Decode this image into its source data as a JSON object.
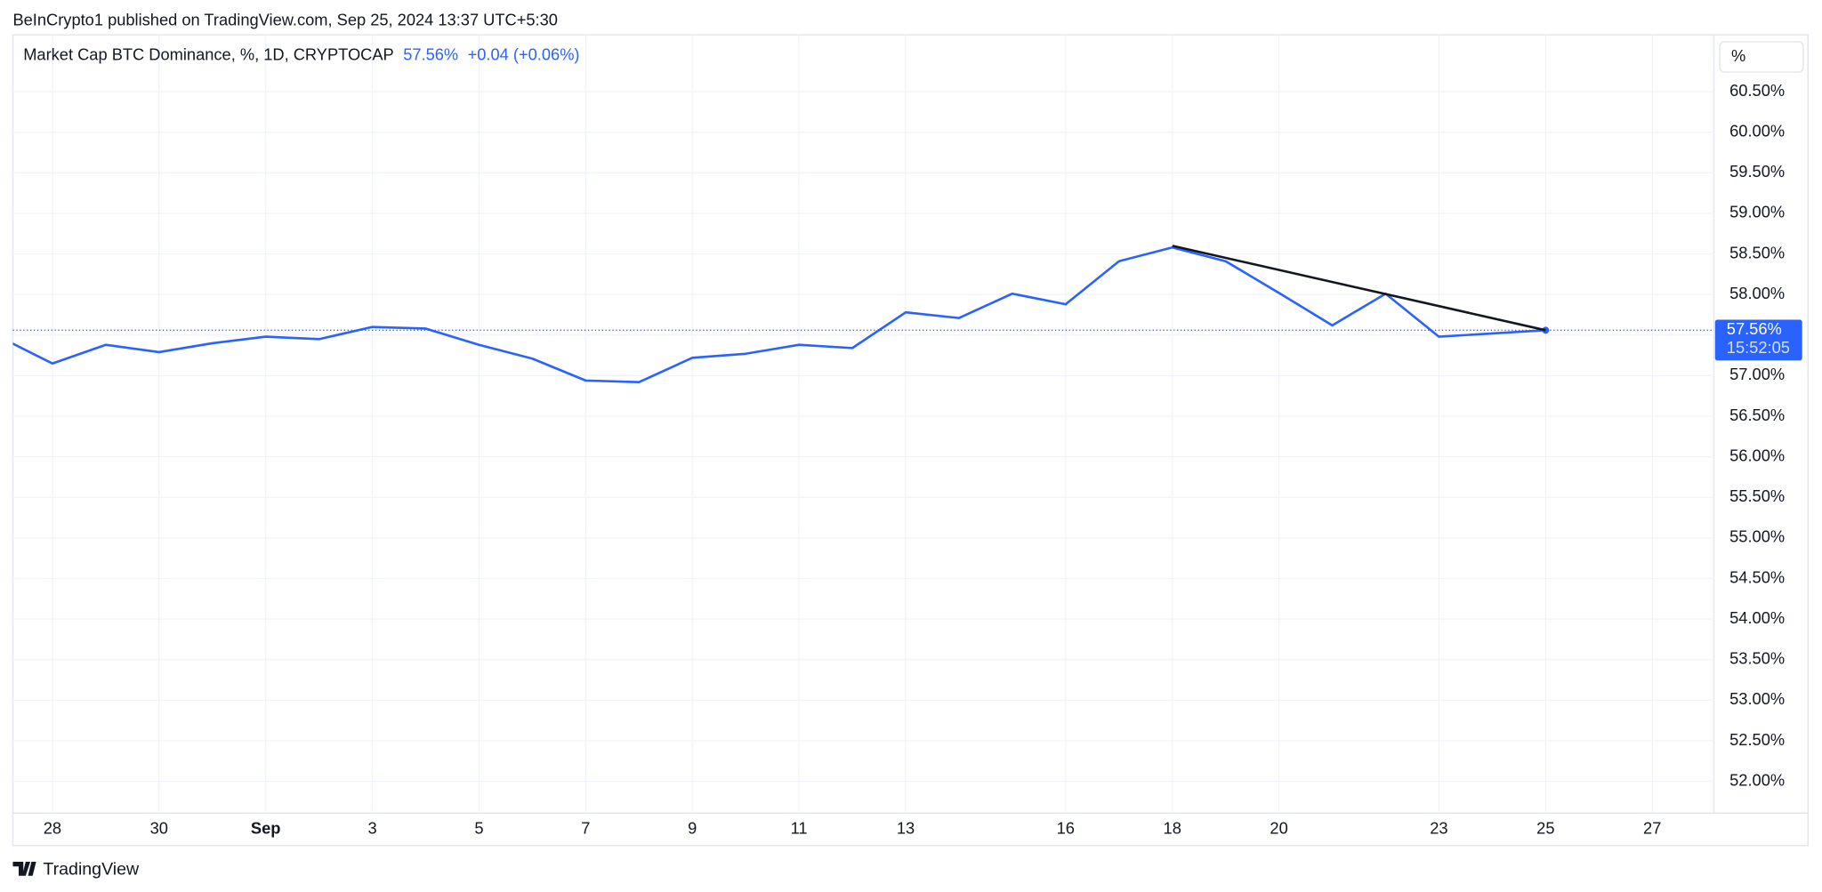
{
  "header": {
    "published": "BeInCrypto1 published on TradingView.com, Sep 25, 2024 13:37 UTC+5:30",
    "footer": "TradingView"
  },
  "chart_data": {
    "type": "line",
    "title": "Market Cap BTC Dominance, %, 1D, CRYPTOCAP",
    "last_price_label": "57.56%",
    "change_label": "+0.04 (+0.06%)",
    "countdown": "15:52:05",
    "scale_button": "%",
    "categories": [
      null,
      "28",
      null,
      "30",
      null,
      "Sep",
      null,
      "3",
      null,
      "5",
      null,
      "7",
      null,
      "9",
      null,
      "11",
      null,
      "13",
      null,
      null,
      "16",
      null,
      "18",
      null,
      "20",
      null,
      null,
      "23",
      null,
      "25",
      null,
      "27"
    ],
    "series": [
      {
        "name": "Market Cap BTC Dominance",
        "color": "#2962ff",
        "values": [
          57.48,
          57.15,
          57.38,
          57.29,
          57.4,
          57.48,
          57.45,
          57.6,
          57.58,
          57.38,
          57.21,
          56.94,
          56.92,
          57.22,
          57.27,
          57.38,
          57.34,
          57.78,
          57.71,
          58.01,
          57.88,
          58.41,
          58.58,
          58.41,
          58.02,
          57.62,
          58.01,
          57.48,
          57.52,
          57.56,
          null,
          null
        ]
      }
    ],
    "trendline": {
      "color": "#131722",
      "x": [
        "18",
        "25"
      ],
      "values": [
        58.6,
        57.56
      ]
    },
    "ylim": [
      51.61,
      61.2
    ],
    "yticks": [
      {
        "value": 52,
        "label": "52.00%"
      },
      {
        "value": 52.5,
        "label": "52.50%"
      },
      {
        "value": 53,
        "label": "53.00%"
      },
      {
        "value": 53.5,
        "label": "53.50%"
      },
      {
        "value": 54,
        "label": "54.00%"
      },
      {
        "value": 54.5,
        "label": "54.50%"
      },
      {
        "value": 55,
        "label": "55.00%"
      },
      {
        "value": 55.5,
        "label": "55.50%"
      },
      {
        "value": 56,
        "label": "56.00%"
      },
      {
        "value": 56.5,
        "label": "56.50%"
      },
      {
        "value": 57,
        "label": "57.00%"
      },
      {
        "value": 57.5,
        "label": "57.50%"
      },
      {
        "value": 58,
        "label": "58.00%"
      },
      {
        "value": 58.5,
        "label": "58.50%"
      },
      {
        "value": 59,
        "label": "59.00%"
      },
      {
        "value": 59.5,
        "label": "59.50%"
      },
      {
        "value": 60,
        "label": "60.00%"
      },
      {
        "value": 60.5,
        "label": "60.50%"
      }
    ],
    "grid": true
  }
}
